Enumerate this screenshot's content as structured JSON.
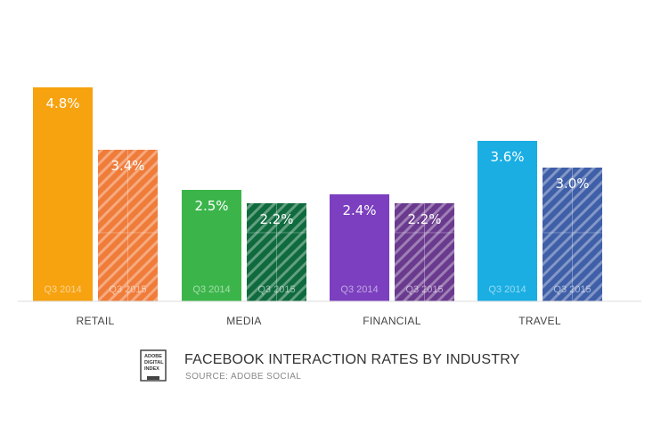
{
  "chart_data": {
    "type": "bar",
    "title": "FACEBOOK INTERACTION RATES BY INDUSTRY",
    "subtitle": "SOURCE: ADOBE SOCIAL",
    "categories": [
      "RETAIL",
      "MEDIA",
      "FINANCIAL",
      "TRAVEL"
    ],
    "series": [
      {
        "name": "Q3 2014",
        "values": [
          4.8,
          2.5,
          2.4,
          3.6
        ],
        "labels": [
          "4.8%",
          "2.5%",
          "2.4%",
          "3.6%"
        ]
      },
      {
        "name": "Q3 2015",
        "values": [
          3.4,
          2.2,
          2.2,
          3.0
        ],
        "labels": [
          "3.4%",
          "2.2%",
          "2.2%",
          "3.0%"
        ]
      }
    ],
    "colors": {
      "q3_2014": [
        "#f7a20f",
        "#3bb54a",
        "#7b3fbf",
        "#1aaee3"
      ],
      "q3_2015": [
        "#f07c3a",
        "#0f6b3e",
        "#6a3a8e",
        "#3f5fa8"
      ]
    },
    "ylim": [
      0,
      5
    ],
    "xlabel": "",
    "ylabel": ""
  },
  "logo": {
    "lines": [
      "ADOBE",
      "DIGITAL",
      "INDEX"
    ]
  }
}
